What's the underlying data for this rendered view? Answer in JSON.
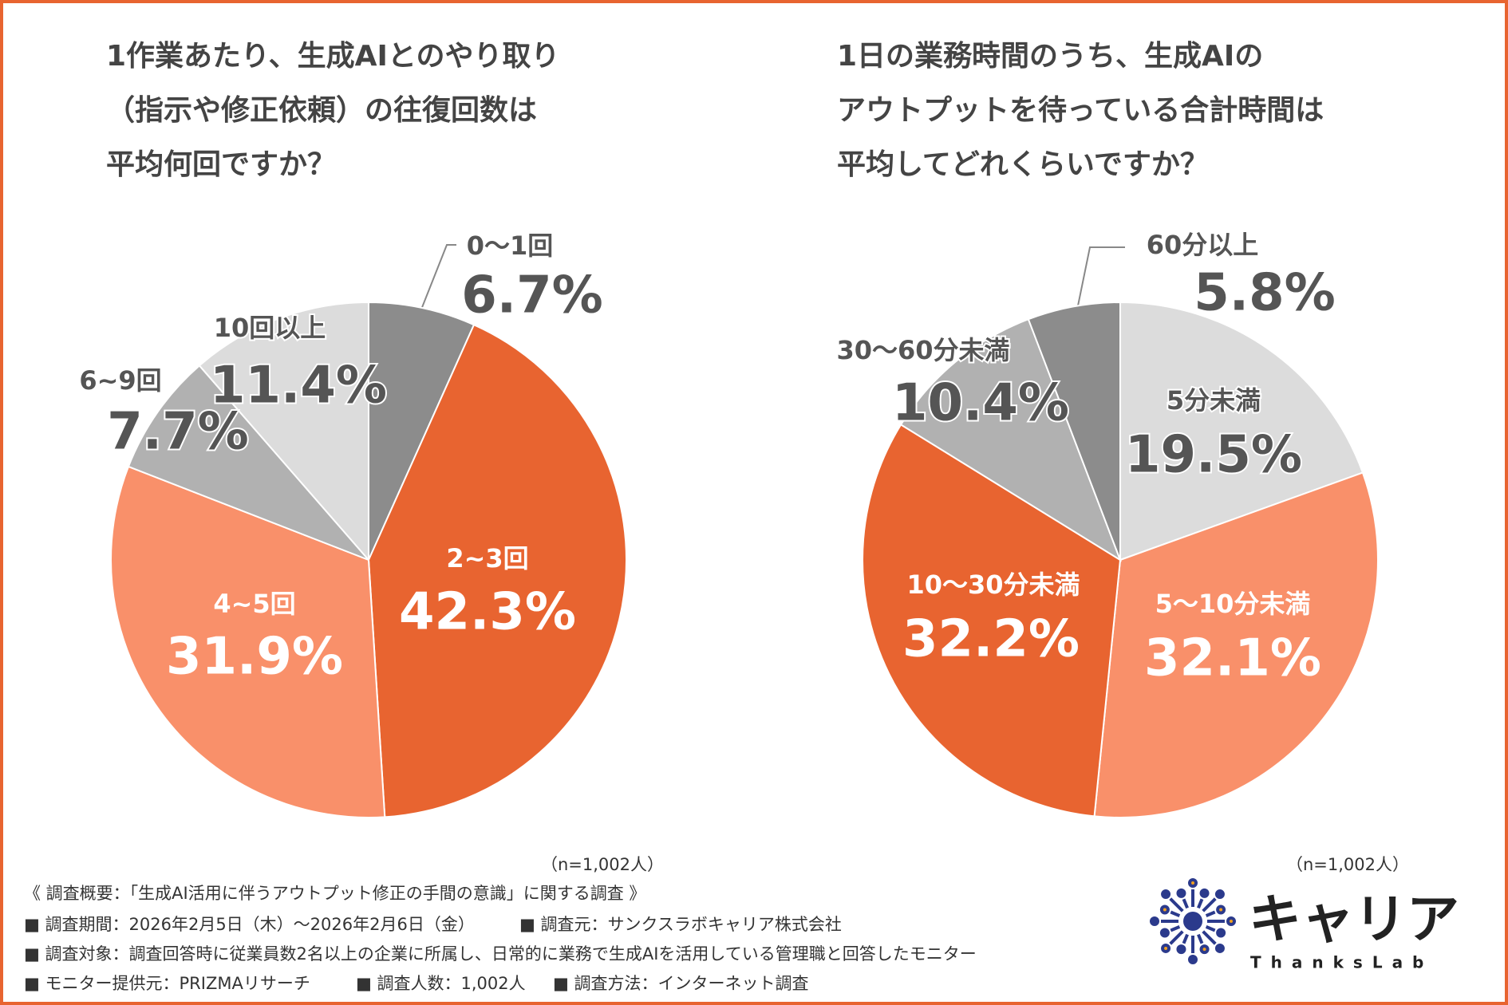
{
  "chart_data": [
    {
      "type": "pie",
      "title": [
        "1作業あたり、生成AIとのやり取り",
        "（指示や修正依頼）の往復回数は",
        "平均何回ですか？"
      ],
      "categories": [
        "0〜1回",
        "2~3回",
        "4~5回",
        "6~9回",
        "10回以上"
      ],
      "values": [
        6.7,
        42.3,
        31.9,
        7.7,
        11.4
      ],
      "value_labels": [
        "6.7%",
        "42.3%",
        "31.9%",
        "7.7%",
        "11.4%"
      ],
      "colors": [
        "#8c8c8c",
        "#e86430",
        "#f9906a",
        "#b1b1b1",
        "#dcdcdc"
      ],
      "note": "（n=1,002人）"
    },
    {
      "type": "pie",
      "title": [
        "1日の業務時間のうち、生成AIの",
        "アウトプットを待っている合計時間は",
        "平均してどれくらいですか？"
      ],
      "categories": [
        "5分未満",
        "5〜10分未満",
        "10〜30分未満",
        "30〜60分未満",
        "60分以上"
      ],
      "values": [
        19.5,
        32.1,
        32.2,
        10.4,
        5.8
      ],
      "value_labels": [
        "19.5%",
        "32.1%",
        "32.2%",
        "10.4%",
        "5.8%"
      ],
      "colors": [
        "#dcdcdc",
        "#f9906a",
        "#e86430",
        "#b1b1b1",
        "#8c8c8c"
      ],
      "note": "（n=1,002人）"
    }
  ],
  "footer": {
    "heading": "《 調査概要：「生成AI活用に伴うアウトプット修正の手間の意識」に関する調査 》",
    "lines": [
      [
        "■ 調査期間：2026年2月5日（木）〜2026年2月6日（金）",
        "■ 調査元：サンクスラボキャリア株式会社"
      ],
      [
        "■ 調査対象：調査回答時に従業員数2名以上の企業に所属し、日常的に業務で生成AIを活用している管理職と回答したモニター"
      ],
      [
        "■ モニター提供元：PRIZMAリサーチ",
        "■ 調査人数：1,002人",
        "■ 調査方法：インターネット調査"
      ]
    ]
  },
  "logo": {
    "name": "キャリア",
    "sub": "ThanksLab"
  }
}
